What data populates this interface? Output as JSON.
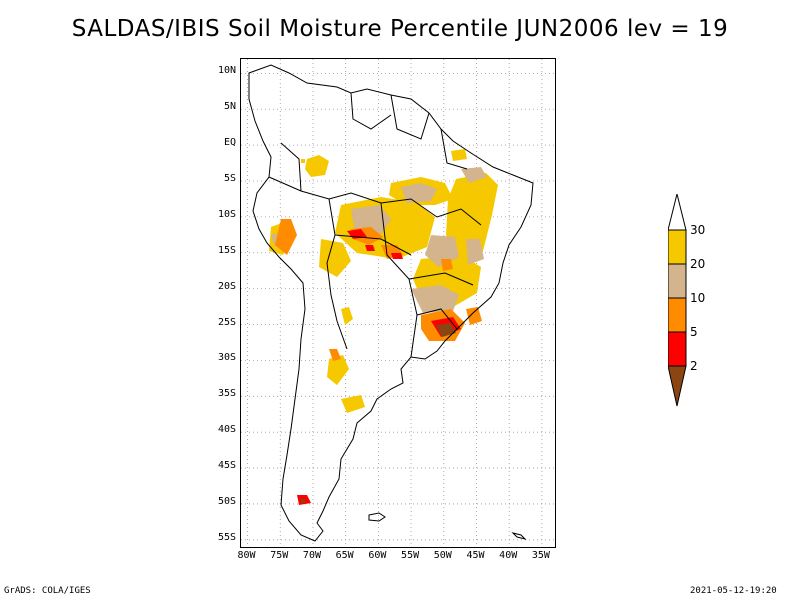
{
  "title": "SALDAS/IBIS Soil Moisture Percentile JUN2006 lev = 19",
  "map": {
    "lat_labels": [
      "10N",
      "5N",
      "EQ",
      "5S",
      "10S",
      "15S",
      "20S",
      "25S",
      "30S",
      "35S",
      "40S",
      "45S",
      "50S",
      "55S"
    ],
    "lat_values": [
      10,
      5,
      0,
      -5,
      -10,
      -15,
      -20,
      -25,
      -30,
      -35,
      -40,
      -45,
      -50,
      -55
    ],
    "lon_labels": [
      "80W",
      "75W",
      "70W",
      "65W",
      "60W",
      "55W",
      "50W",
      "45W",
      "40W",
      "35W"
    ],
    "lon_values": [
      -80,
      -75,
      -70,
      -65,
      -60,
      -55,
      -50,
      -45,
      -40,
      -35
    ],
    "lon_range": [
      -81,
      -33
    ],
    "lat_range": [
      12,
      -56
    ],
    "grid": true
  },
  "legend": {
    "labels": [
      "30",
      "20",
      "10",
      "5",
      "2"
    ],
    "colors": {
      "above30": "#ffffff",
      "c20_30": "#f5c800",
      "c10_20": "#d4b48c",
      "c5_10": "#ff8c00",
      "c2_5": "#ff0000",
      "below2": "#8b4513"
    }
  },
  "footer": {
    "left": "GrADS: COLA/IGES",
    "right": "2021-05-12-19:20"
  }
}
